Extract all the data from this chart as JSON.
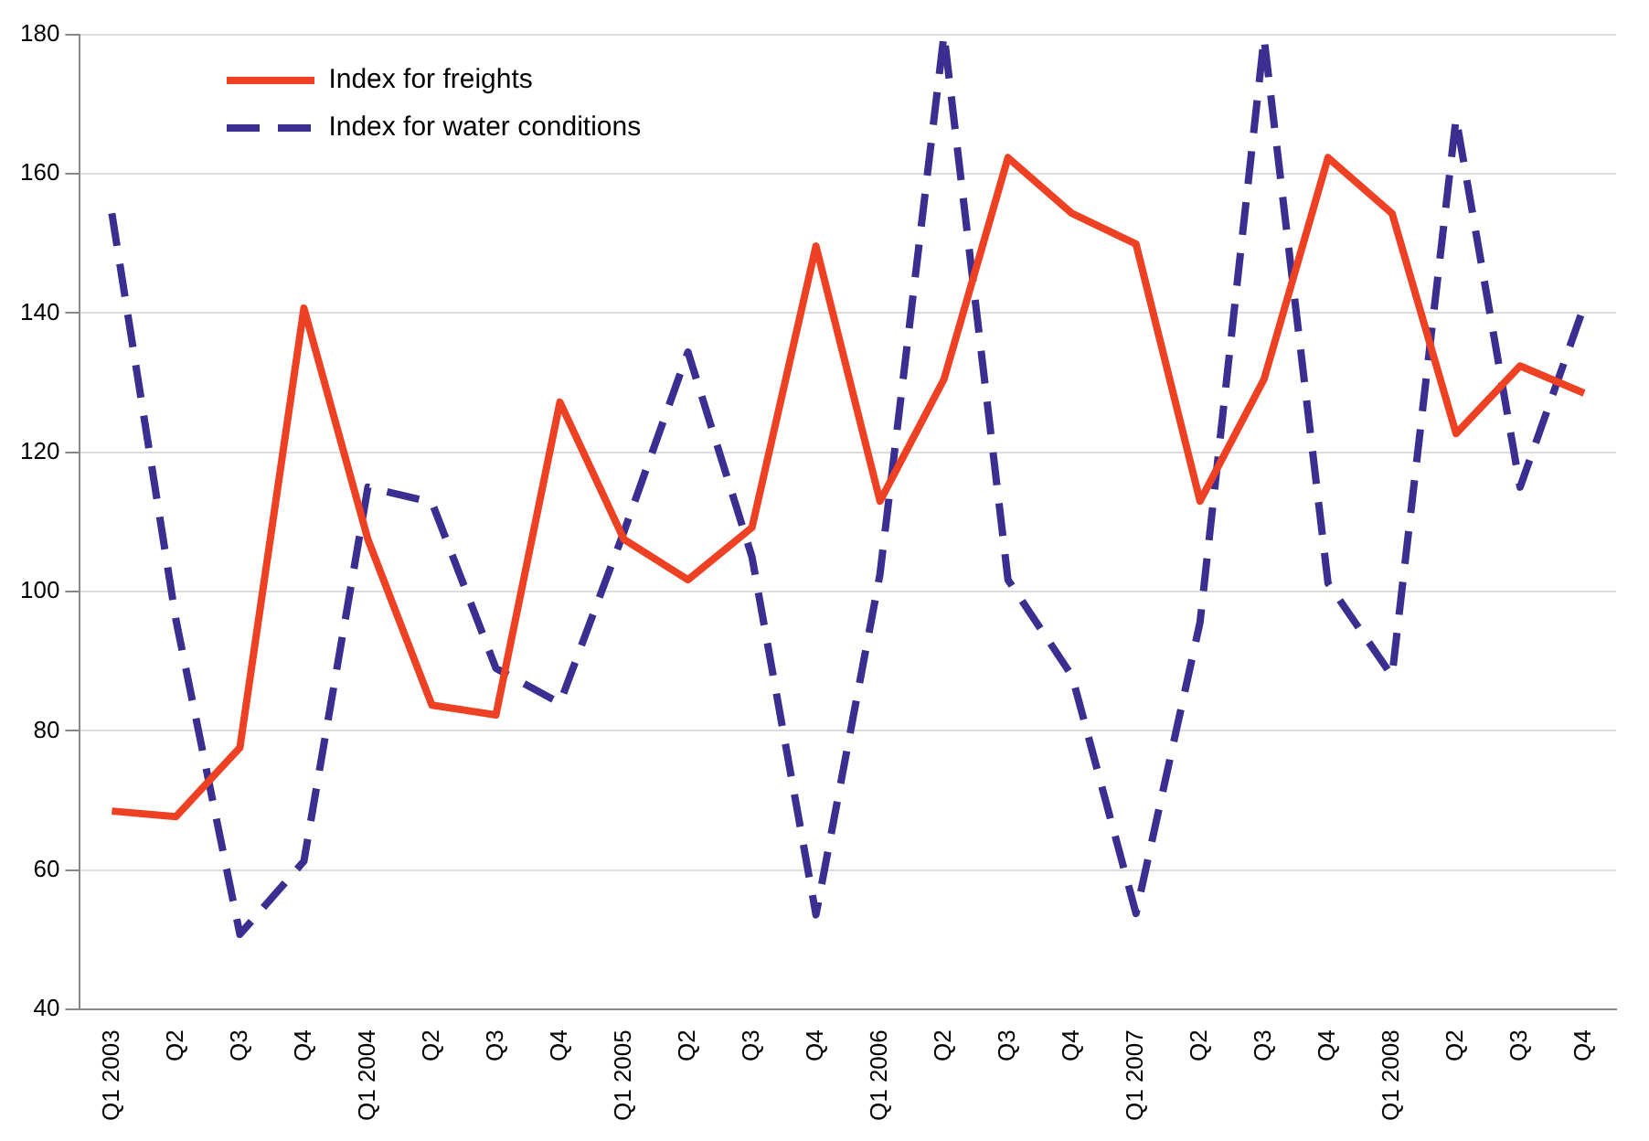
{
  "chart_data": {
    "type": "line",
    "categories": [
      "Q1 2003",
      "Q2",
      "Q3",
      "Q4",
      "Q1 2004",
      "Q2",
      "Q3",
      "Q4",
      "Q1 2005",
      "Q2",
      "Q3",
      "Q4",
      "Q1 2006",
      "Q2",
      "Q3",
      "Q4",
      "Q1 2007",
      "Q2",
      "Q3",
      "Q4",
      "Q1 2008",
      "Q2",
      "Q3",
      "Q4"
    ],
    "series": [
      {
        "name": "Index for freights",
        "color": "#ee4023",
        "line_style": "solid",
        "values": [
          68.5,
          67.7,
          77.6,
          140.7,
          107.5,
          83.7,
          82.3,
          127.2,
          107.5,
          101.7,
          109.2,
          149.6,
          113,
          130.5,
          162.3,
          154.3,
          149.9,
          113,
          130.5,
          162.3,
          154.3,
          122.7,
          132.4,
          128.5
        ]
      },
      {
        "name": "Index for water conditions",
        "color": "#3a2f91",
        "line_style": "dashed",
        "values": [
          154.3,
          96,
          50.8,
          61.3,
          115,
          112.8,
          89,
          84,
          108.6,
          134.4,
          105,
          53.6,
          102.5,
          180,
          101.7,
          87.9,
          53.8,
          95.6,
          179.5,
          101.2,
          87.9,
          168,
          115,
          141
        ]
      }
    ],
    "ylim": [
      40,
      180
    ],
    "yticks": [
      40,
      60,
      80,
      100,
      120,
      140,
      160,
      180
    ],
    "grid": "y",
    "legend": "top left",
    "marker": "none"
  }
}
